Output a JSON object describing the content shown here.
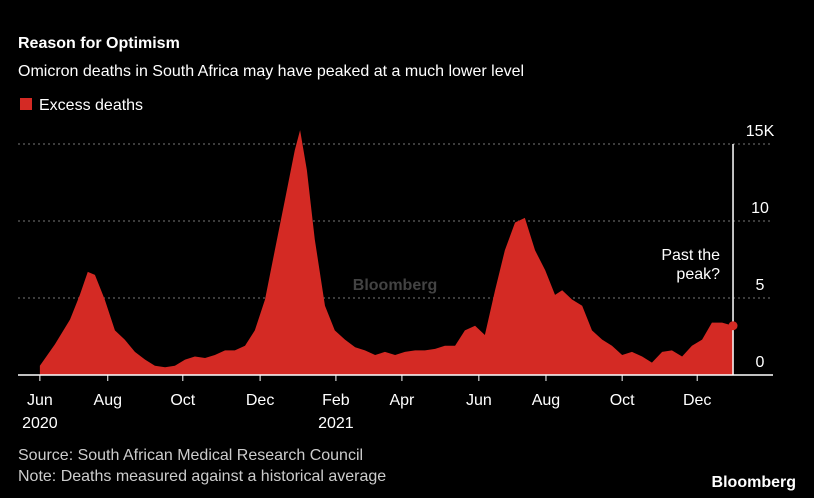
{
  "chart_data": {
    "type": "area",
    "title": "Reason for Optimism",
    "subtitle": "Omicron deaths in South Africa may have peaked at a much lower level",
    "watermark": "Bloomberg",
    "annotation": [
      "Past the",
      "peak?"
    ],
    "source": "Source: South African Medical Research Council",
    "note": "Note: Deaths measured against a historical average",
    "logo": "Bloomberg",
    "x": [
      0,
      0.4,
      0.8,
      1.06,
      1.27,
      1.46,
      1.72,
      1.99,
      2.25,
      2.52,
      2.79,
      3.05,
      3.32,
      3.58,
      3.85,
      4.11,
      4.38,
      4.64,
      4.91,
      5.17,
      5.44,
      5.7,
      5.97,
      6.23,
      6.5,
      6.76,
      6.9,
      7.08,
      7.29,
      7.56,
      7.82,
      8.09,
      8.36,
      8.62,
      8.89,
      9.15,
      9.42,
      9.68,
      9.95,
      10.21,
      10.48,
      10.74,
      11.01,
      11.27,
      11.54,
      11.8,
      12.07,
      12.33,
      12.6,
      12.86,
      13.13,
      13.4,
      13.66,
      13.85,
      14.11,
      14.38,
      14.64,
      14.91,
      15.17,
      15.44,
      15.7,
      15.97,
      16.23,
      16.5,
      16.76,
      17.03,
      17.29,
      17.56,
      17.82,
      18.09,
      18.38
    ],
    "series": [
      {
        "name": "Excess deaths",
        "color": "#d42a24",
        "values": [
          0.6,
          2,
          3.6,
          5.2,
          6.7,
          6.5,
          4.9,
          2.9,
          2.3,
          1.5,
          1,
          0.6,
          0.5,
          0.6,
          1,
          1.2,
          1.1,
          1.3,
          1.6,
          1.6,
          1.9,
          2.9,
          4.9,
          8.1,
          11.4,
          14.6,
          15.9,
          13.3,
          8.8,
          4.5,
          2.9,
          2.3,
          1.8,
          1.6,
          1.3,
          1.5,
          1.3,
          1.5,
          1.6,
          1.6,
          1.7,
          1.9,
          1.9,
          2.9,
          3.2,
          2.6,
          5.5,
          8.1,
          9.9,
          10.2,
          8.1,
          6.8,
          5.2,
          5.5,
          4.9,
          4.5,
          2.9,
          2.3,
          1.9,
          1.3,
          1.5,
          1.2,
          0.8,
          1.5,
          1.6,
          1.2,
          1.9,
          2.3,
          3.4,
          3.4,
          3.2
        ]
      }
    ],
    "xlim": [
      -0.58,
      19.44
    ],
    "xticks": [
      {
        "value": 0,
        "label": "Jun"
      },
      {
        "value": 1.8,
        "label": "Aug"
      },
      {
        "value": 3.79,
        "label": "Oct"
      },
      {
        "value": 5.84,
        "label": "Dec"
      },
      {
        "value": 7.85,
        "label": "Feb"
      },
      {
        "value": 9.6,
        "label": "Apr"
      },
      {
        "value": 11.64,
        "label": "Jun"
      },
      {
        "value": 13.42,
        "label": "Aug"
      },
      {
        "value": 15.44,
        "label": "Oct"
      },
      {
        "value": 17.43,
        "label": "Dec"
      }
    ],
    "year_labels": [
      {
        "value": 0,
        "label": "2020"
      },
      {
        "value": 7.85,
        "label": "2021"
      }
    ],
    "ylim": [
      0,
      15
    ],
    "yticks": [
      0,
      5,
      10,
      {
        "value": 15,
        "label": "15K"
      }
    ],
    "grid": true
  }
}
